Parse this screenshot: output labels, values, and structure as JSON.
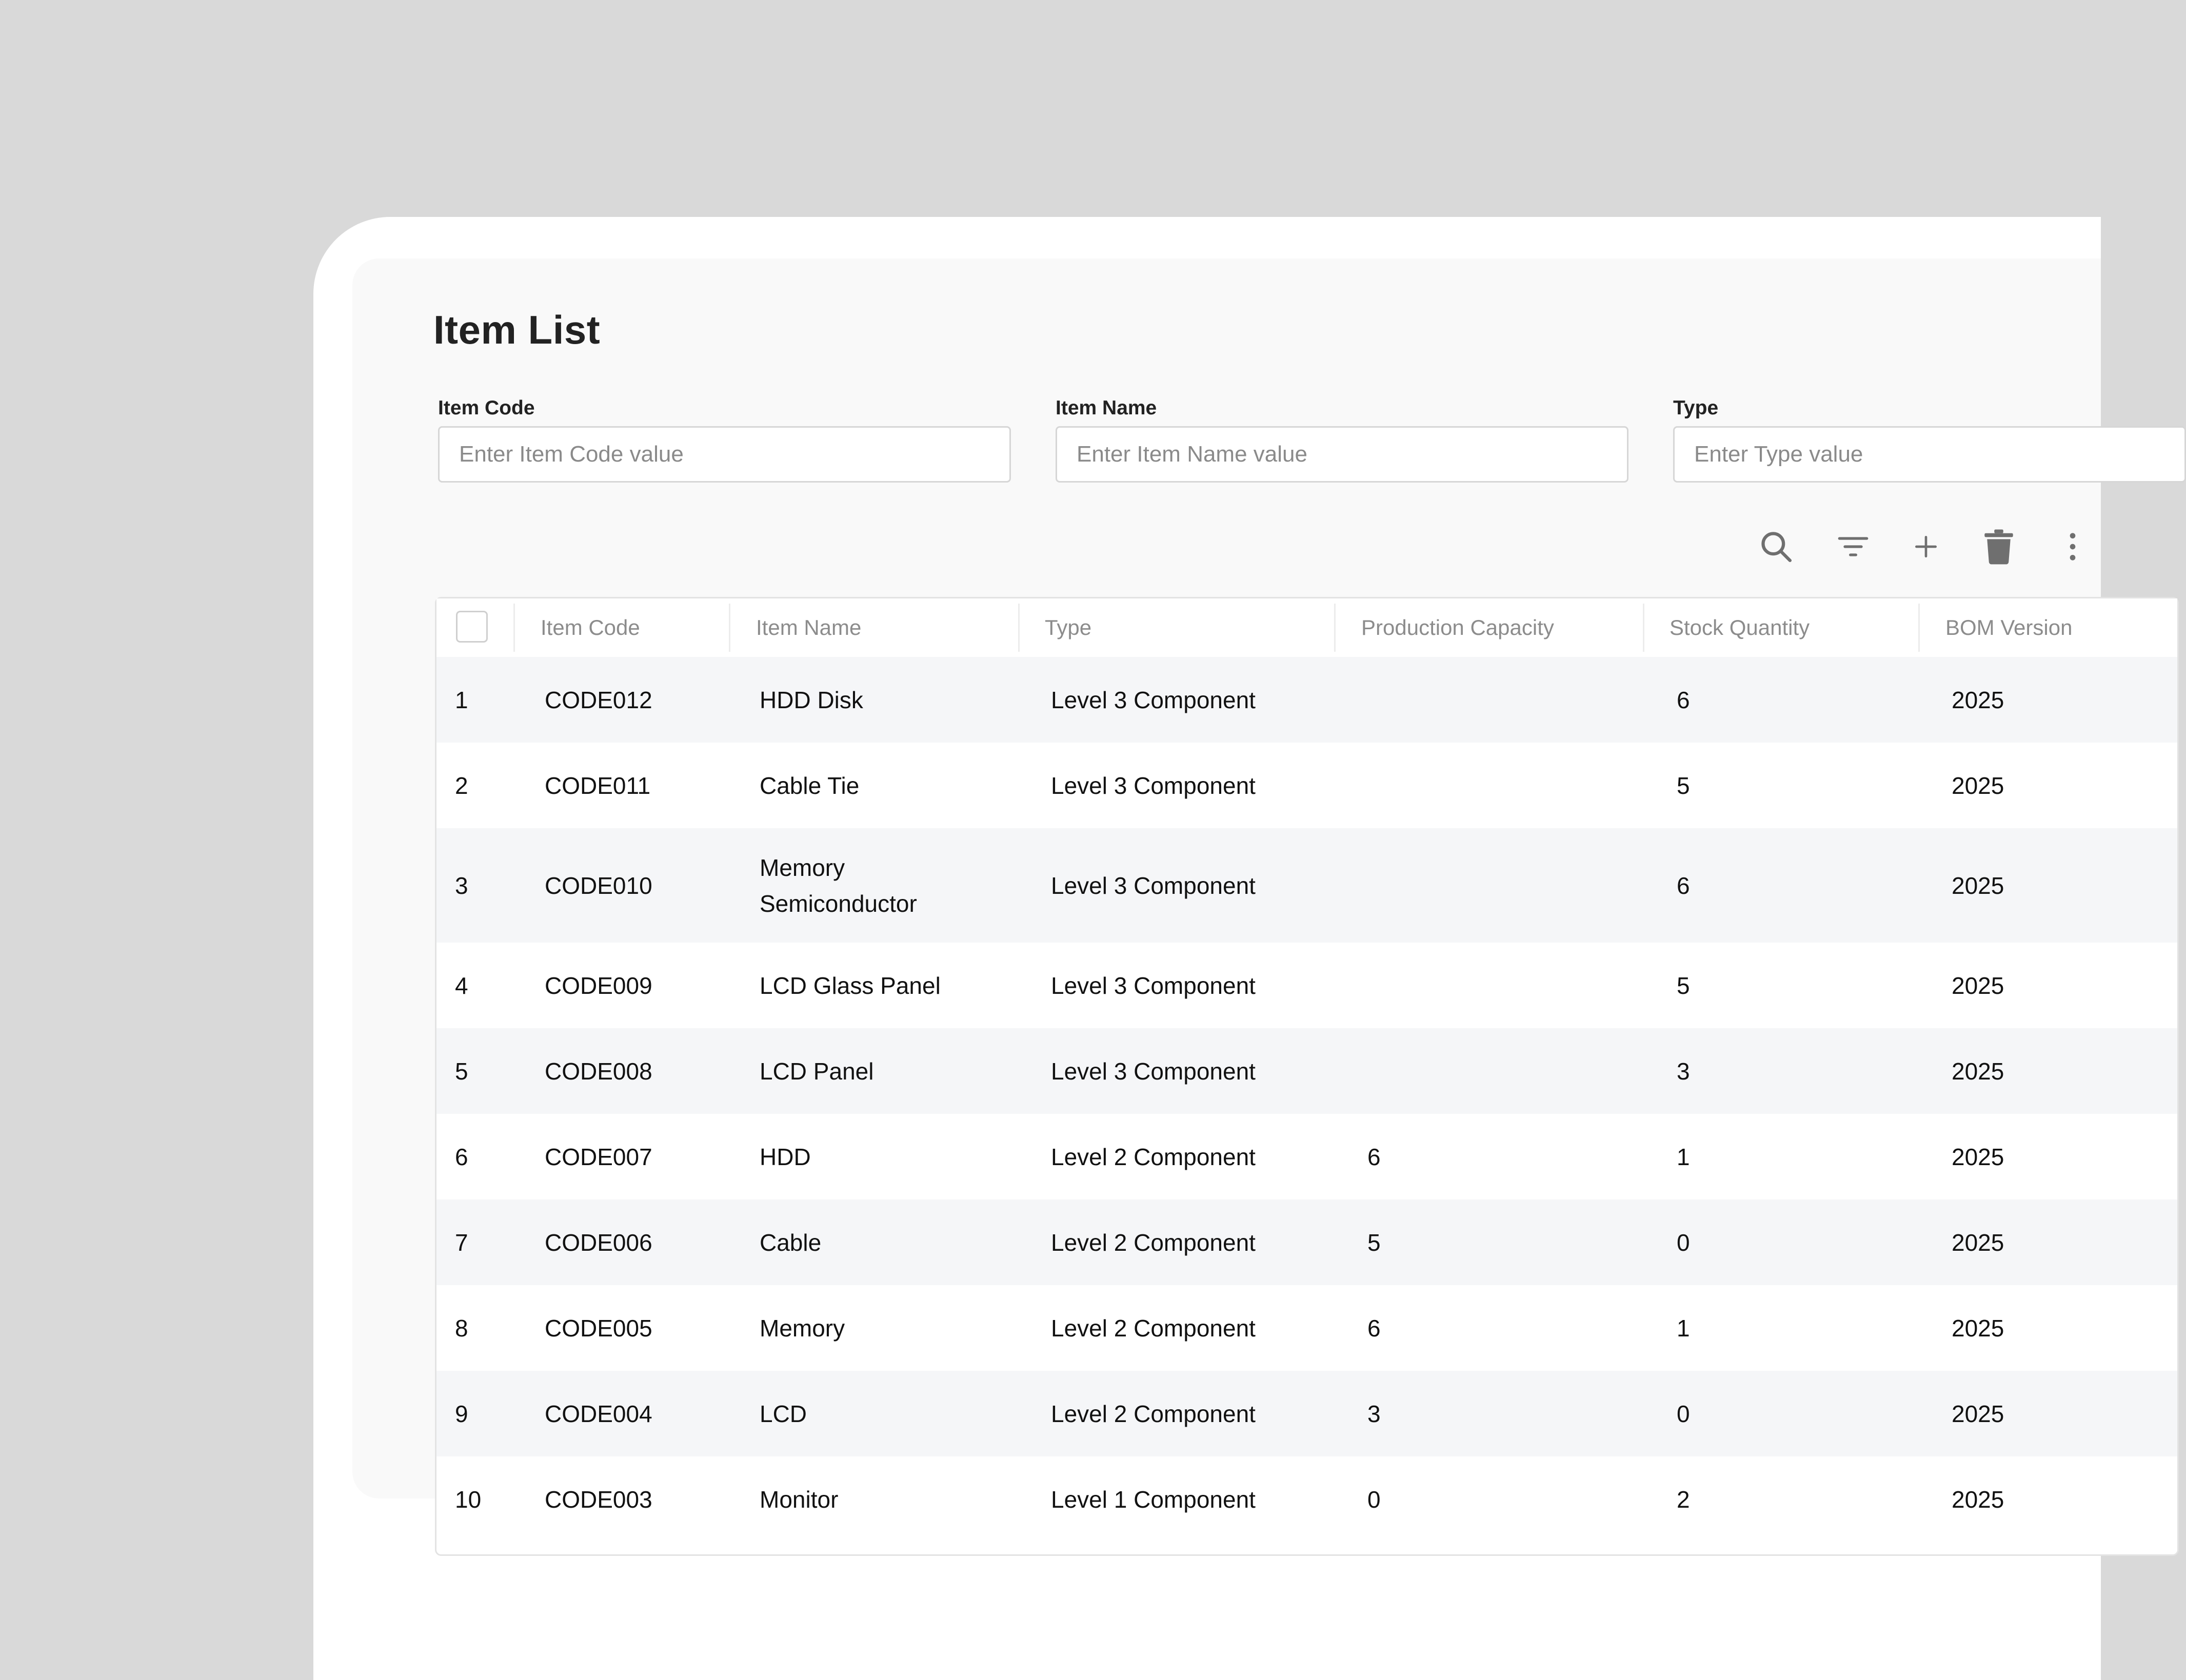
{
  "page": {
    "title": "Item List"
  },
  "filters": [
    {
      "label": "Item Code",
      "placeholder": "Enter Item Code value"
    },
    {
      "label": "Item Name",
      "placeholder": "Enter Item Name value"
    },
    {
      "label": "Type",
      "placeholder": "Enter Type value"
    }
  ],
  "toolbar": {
    "icons": [
      "search-icon",
      "filter-icon",
      "add-icon",
      "delete-icon",
      "more-icon"
    ]
  },
  "table": {
    "columns": [
      "Item Code",
      "Item Name",
      "Type",
      "Production Capacity",
      "Stock Quantity",
      "BOM Version"
    ],
    "rows": [
      {
        "no": "1",
        "code": "CODE012",
        "name": "HDD Disk",
        "type": "Level 3 Component",
        "capacity": "",
        "stock": "6",
        "bom": "2025"
      },
      {
        "no": "2",
        "code": "CODE011",
        "name": "Cable Tie",
        "type": "Level 3 Component",
        "capacity": "",
        "stock": "5",
        "bom": "2025"
      },
      {
        "no": "3",
        "code": "CODE010",
        "name": "Memory Semiconductor",
        "type": "Level 3 Component",
        "capacity": "",
        "stock": "6",
        "bom": "2025"
      },
      {
        "no": "4",
        "code": "CODE009",
        "name": "LCD Glass Panel",
        "type": "Level 3 Component",
        "capacity": "",
        "stock": "5",
        "bom": "2025"
      },
      {
        "no": "5",
        "code": "CODE008",
        "name": "LCD Panel",
        "type": "Level 3 Component",
        "capacity": "",
        "stock": "3",
        "bom": "2025"
      },
      {
        "no": "6",
        "code": "CODE007",
        "name": "HDD",
        "type": "Level 2 Component",
        "capacity": "6",
        "stock": "1",
        "bom": "2025"
      },
      {
        "no": "7",
        "code": "CODE006",
        "name": "Cable",
        "type": "Level 2 Component",
        "capacity": "5",
        "stock": "0",
        "bom": "2025"
      },
      {
        "no": "8",
        "code": "CODE005",
        "name": "Memory",
        "type": "Level 2 Component",
        "capacity": "6",
        "stock": "1",
        "bom": "2025"
      },
      {
        "no": "9",
        "code": "CODE004",
        "name": "LCD",
        "type": "Level 2 Component",
        "capacity": "3",
        "stock": "0",
        "bom": "2025"
      },
      {
        "no": "10",
        "code": "CODE003",
        "name": "Monitor",
        "type": "Level 1 Component",
        "capacity": "0",
        "stock": "2",
        "bom": "2025"
      }
    ]
  },
  "colors": {
    "background": "#d9d9d9",
    "panel": "#f9f9f9",
    "row_stripe": "#f5f6f8",
    "header_text": "#8c8c8c",
    "icon": "#7a7a7a"
  }
}
